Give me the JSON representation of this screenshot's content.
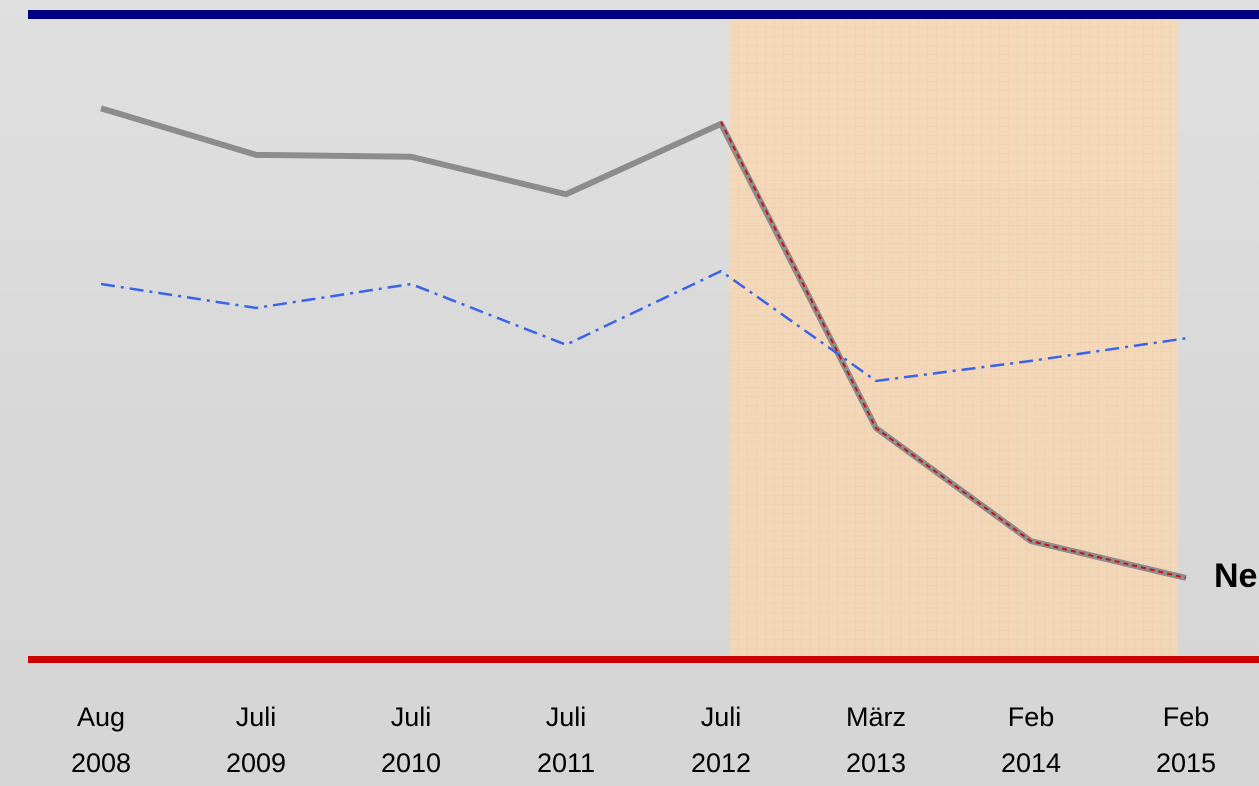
{
  "chart_data": {
    "type": "line",
    "categories": [
      "Aug\n2008",
      "Juli\n2009",
      "Juli\n2010",
      "Juli\n2011",
      "Juli\n2012",
      "März\n2013",
      "Feb\n2014",
      "Feb\n2015"
    ],
    "series": [
      {
        "color": "#8c8c8c",
        "style": "solid",
        "values": [
          85.4,
          78.2,
          77.9,
          72.1,
          83.0,
          35.9,
          18.4,
          12.7
        ]
      },
      {
        "color": "#3a64e8",
        "style": "dashdot",
        "values": [
          58.2,
          54.5,
          58.2,
          48.8,
          60.2,
          43.2,
          46.3,
          49.8
        ]
      },
      {
        "color": "#cc1111",
        "style": "dashed",
        "values": [
          null,
          null,
          null,
          null,
          83.3,
          35.9,
          18.4,
          12.7
        ]
      }
    ],
    "annotation": "Ne",
    "ylim": [
      0,
      100
    ]
  }
}
